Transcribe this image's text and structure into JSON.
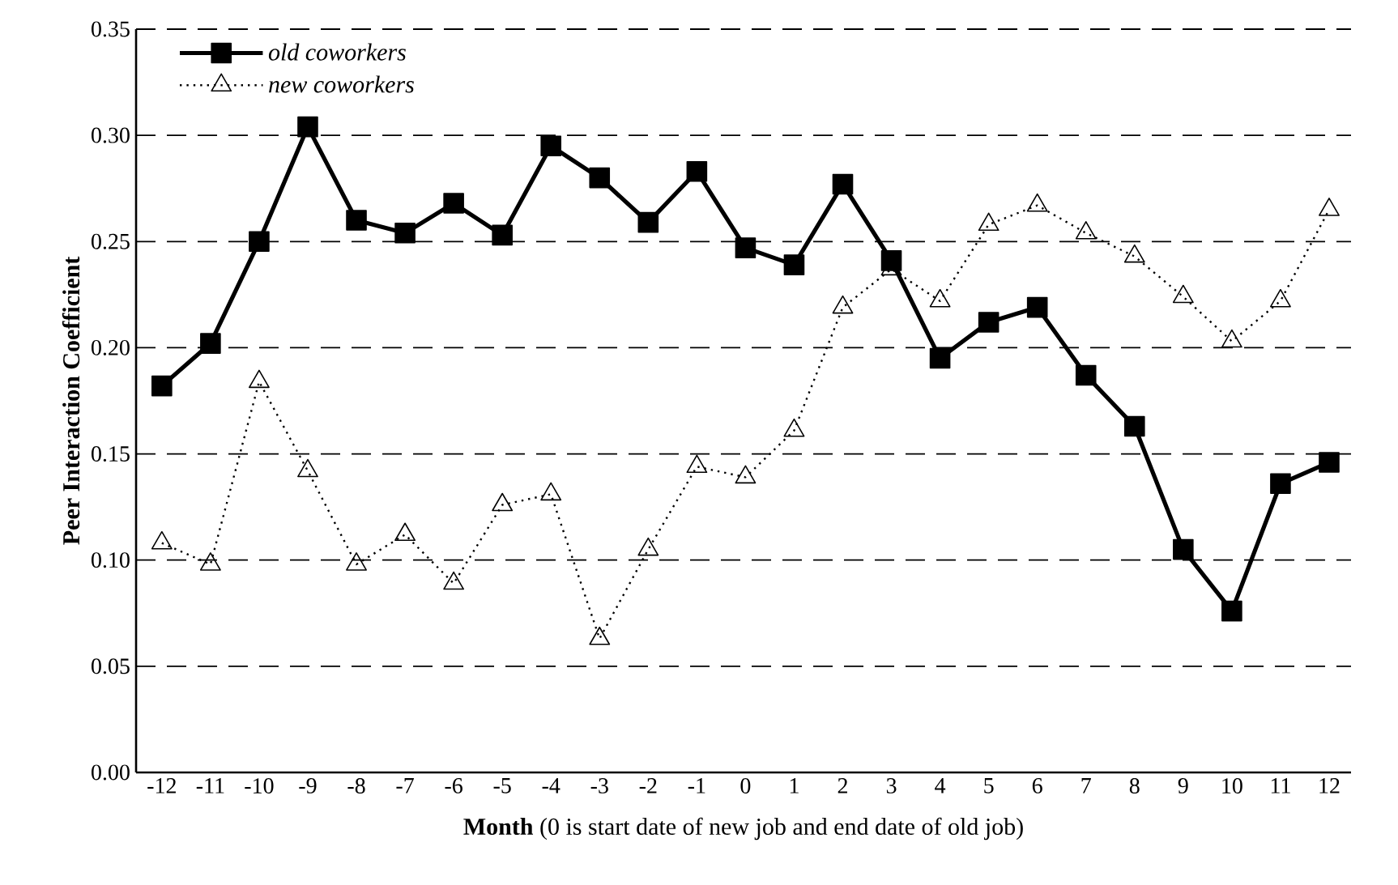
{
  "chart_data": {
    "type": "line",
    "xlabel": "**Month** (0 is start date of new job and end date of old job)",
    "ylabel": "Peer Interaction Coefficient",
    "categories": [
      "-12",
      "-11",
      "-10",
      "-9",
      "-8",
      "-7",
      "-6",
      "-5",
      "-4",
      "-3",
      "-2",
      "-1",
      "0",
      "1",
      "2",
      "3",
      "4",
      "5",
      "6",
      "7",
      "8",
      "9",
      "10",
      "11",
      "12"
    ],
    "series": [
      {
        "name": "old coworkers",
        "color": "#000000",
        "marker": "square",
        "line_style": "solid",
        "values": [
          0.182,
          0.202,
          0.25,
          0.304,
          0.26,
          0.254,
          0.268,
          0.253,
          0.295,
          0.28,
          0.259,
          0.283,
          0.247,
          0.239,
          0.277,
          0.241,
          0.195,
          0.212,
          0.219,
          0.187,
          0.163,
          0.105,
          0.076,
          0.136,
          0.146
        ]
      },
      {
        "name": "new coworkers",
        "color": "#000000",
        "marker": "triangle",
        "line_style": "dotted",
        "values": [
          0.108,
          0.098,
          0.184,
          0.142,
          0.098,
          0.112,
          0.089,
          0.126,
          0.131,
          0.063,
          0.105,
          0.144,
          0.139,
          0.161,
          0.219,
          0.237,
          0.222,
          0.258,
          0.267,
          0.254,
          0.243,
          0.224,
          0.203,
          0.222,
          0.265
        ]
      }
    ],
    "ylim": [
      0,
      0.35
    ],
    "yticks": [
      {
        "value": 0,
        "label": "0.00"
      },
      {
        "value": 0.05,
        "label": "0.05"
      },
      {
        "value": 0.1,
        "label": "0.10"
      },
      {
        "value": 0.15,
        "label": "0.15"
      },
      {
        "value": 0.2,
        "label": "0.20"
      },
      {
        "value": 0.25,
        "label": "0.25"
      },
      {
        "value": 0.3,
        "label": "0.30"
      },
      {
        "value": 0.35,
        "label": "0.35"
      }
    ],
    "grid": "y",
    "legend": "top left"
  }
}
